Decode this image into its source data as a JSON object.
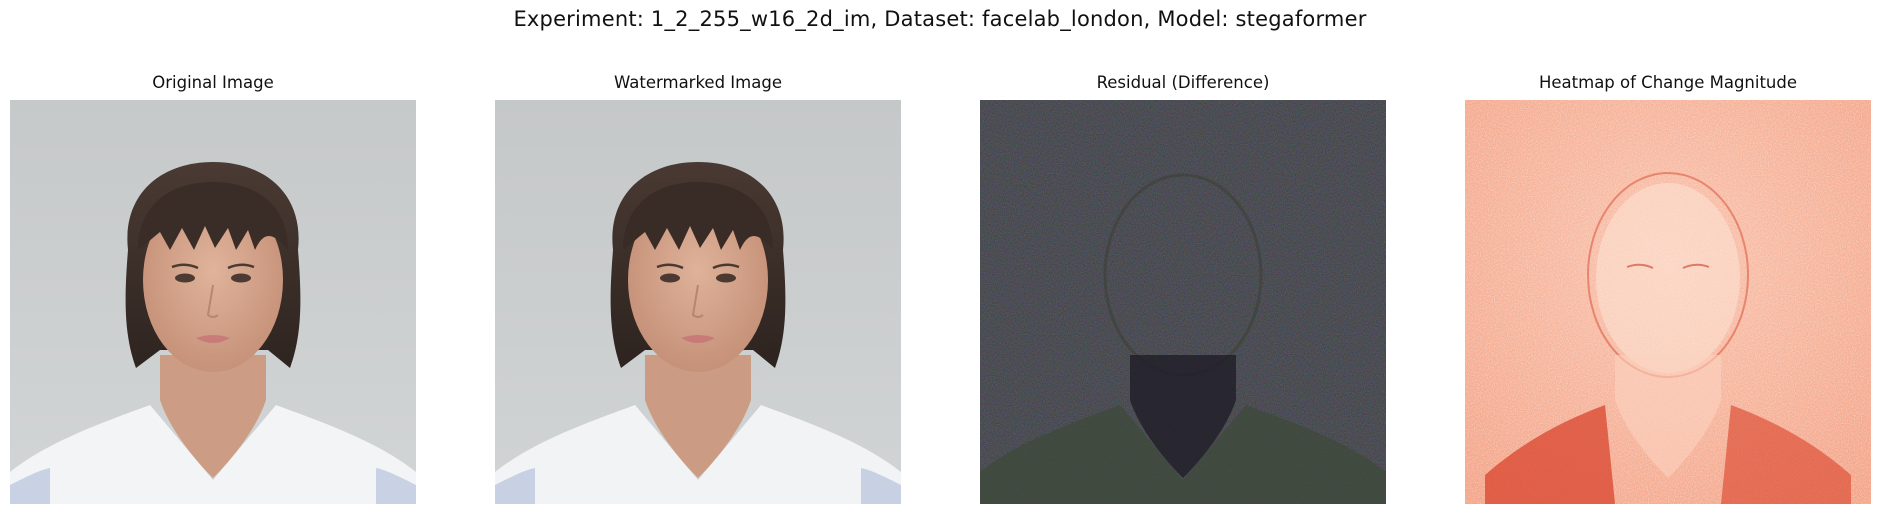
{
  "figure": {
    "suptitle": "Experiment: 1_2_255_w16_2d_im, Dataset: facelab_london, Model: stegaformer"
  },
  "panels": [
    {
      "title": "Original Image",
      "kind": "portrait-photo"
    },
    {
      "title": "Watermarked Image",
      "kind": "portrait-photo"
    },
    {
      "title": "Residual (Difference)",
      "kind": "dark-noise-residual"
    },
    {
      "title": "Heatmap of Change Magnitude",
      "kind": "red-heatmap"
    }
  ],
  "colors": {
    "photo_background": "#c9cccd",
    "hair": "#3b2e28",
    "skin": "#d8a990",
    "shirt": "#f4f5f7",
    "residual_background": "#1c1a26",
    "heatmap_light": "#fcd9c8",
    "heatmap_mid": "#f4a184",
    "heatmap_dark": "#d43a25"
  }
}
